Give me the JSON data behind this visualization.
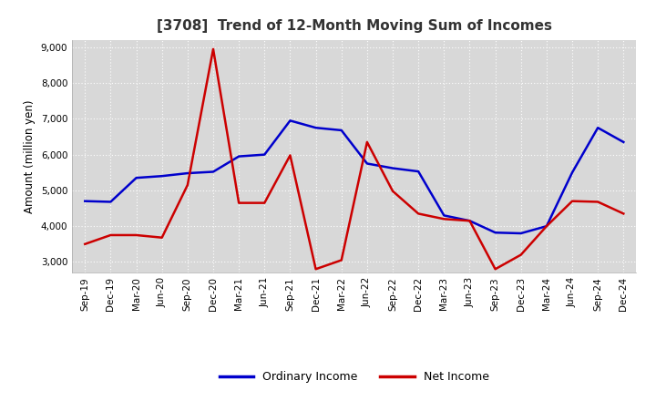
{
  "title": "[3708]  Trend of 12-Month Moving Sum of Incomes",
  "ylabel": "Amount (million yen)",
  "ylim": [
    2700,
    9200
  ],
  "yticks": [
    3000,
    4000,
    5000,
    6000,
    7000,
    8000,
    9000
  ],
  "background_color": "#ffffff",
  "plot_background": "#d8d8d8",
  "grid_color": "#ffffff",
  "labels": [
    "Sep-19",
    "Dec-19",
    "Mar-20",
    "Jun-20",
    "Sep-20",
    "Dec-20",
    "Mar-21",
    "Jun-21",
    "Sep-21",
    "Dec-21",
    "Mar-22",
    "Jun-22",
    "Sep-22",
    "Dec-22",
    "Mar-23",
    "Jun-23",
    "Sep-23",
    "Dec-23",
    "Mar-24",
    "Jun-24",
    "Sep-24",
    "Dec-24"
  ],
  "ordinary_income": [
    4700,
    4680,
    5350,
    5400,
    5480,
    5520,
    5950,
    6000,
    6950,
    6750,
    6680,
    5750,
    5620,
    5530,
    4300,
    4150,
    3820,
    3800,
    4000,
    5500,
    6750,
    6350
  ],
  "net_income": [
    3500,
    3750,
    3750,
    3680,
    5150,
    8950,
    4650,
    4650,
    5980,
    2800,
    3050,
    6350,
    4980,
    4350,
    4200,
    4150,
    2800,
    3200,
    4000,
    4700,
    4680,
    4350
  ],
  "ordinary_color": "#0000cc",
  "net_color": "#cc0000",
  "line_width": 1.8,
  "title_fontsize": 11,
  "tick_fontsize": 7.5,
  "ylabel_fontsize": 8.5,
  "legend_fontsize": 9
}
